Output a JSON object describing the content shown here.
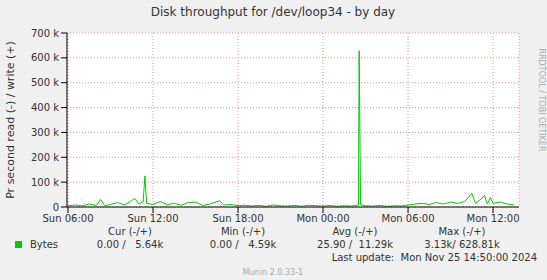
{
  "chart_data": {
    "type": "line",
    "title": "Disk throughput for /dev/loop34 - by day",
    "y_label": "Pr second read (-) / write (+)",
    "x": [
      6.0,
      6.5,
      7.0,
      7.5,
      8.0,
      8.3,
      8.6,
      9.0,
      9.5,
      10.0,
      10.4,
      10.7,
      11.0,
      11.3,
      11.43,
      11.55,
      12.0,
      12.5,
      13.0,
      13.5,
      14.0,
      14.5,
      15.0,
      15.5,
      16.0,
      16.7,
      17.0,
      17.5,
      18.0,
      18.5,
      19.0,
      19.5,
      20.0,
      20.5,
      21.0,
      21.5,
      22.0,
      22.5,
      23.0,
      23.5,
      24.0,
      24.5,
      25.0,
      25.5,
      26.0,
      26.5,
      26.55,
      26.65,
      27.0,
      27.5,
      28.0,
      28.5,
      29.0,
      29.5,
      30.0,
      30.5,
      31.0,
      31.5,
      32.0,
      32.5,
      33.0,
      33.5,
      34.0,
      34.5,
      34.75,
      35.0,
      35.4,
      35.6,
      35.8,
      36.0,
      36.5,
      37.0,
      37.5
    ],
    "series": [
      {
        "name": "Bytes",
        "color": "#00cc00",
        "values": [
          5000,
          8000,
          4000,
          12000,
          6000,
          30000,
          5000,
          10000,
          18000,
          8000,
          22000,
          35000,
          12000,
          20000,
          125000,
          15000,
          10000,
          22000,
          9000,
          15000,
          7000,
          18000,
          20000,
          6000,
          12000,
          25000,
          8000,
          10000,
          5000,
          7000,
          4000,
          6000,
          3000,
          8000,
          5000,
          4000,
          6000,
          3000,
          7000,
          5000,
          4000,
          6000,
          3000,
          5000,
          4000,
          8000,
          628810,
          9000,
          5000,
          4000,
          6000,
          3000,
          5000,
          4000,
          8000,
          12000,
          15000,
          10000,
          18000,
          12000,
          20000,
          14000,
          22000,
          55000,
          15000,
          25000,
          45000,
          12000,
          38000,
          15000,
          20000,
          12000,
          8000
        ]
      }
    ],
    "xlim": [
      5.93,
      37.83
    ],
    "xticks": [
      {
        "value": 6,
        "label": "Sun 06:00"
      },
      {
        "value": 12,
        "label": "Sun 12:00"
      },
      {
        "value": 18,
        "label": "Sun 18:00"
      },
      {
        "value": 24,
        "label": "Mon 00:00"
      },
      {
        "value": 30,
        "label": "Mon 06:00"
      },
      {
        "value": 36,
        "label": "Mon 12:00"
      }
    ],
    "ylim": [
      0,
      700000
    ],
    "yticks": [
      0,
      {
        "value": 100000,
        "label": "100 k"
      },
      {
        "value": 200000,
        "label": "200 k"
      },
      {
        "value": 300000,
        "label": "300 k"
      },
      {
        "value": 400000,
        "label": "400 k"
      },
      {
        "value": 500000,
        "label": "500 k"
      },
      {
        "value": 600000,
        "label": "600 k"
      },
      {
        "value": 700000,
        "label": "700 k"
      }
    ],
    "grid": true,
    "summary": {
      "headers": [
        "Cur (-/+)",
        "Min (-/+)",
        "Avg (-/+)",
        "Max (-/+)"
      ],
      "rows": [
        {
          "name": "Bytes",
          "values": [
            "0.00 /   5.64k",
            "0.00 /   4.59k",
            "25.90 /  11.29k",
            "3.13k/ 628.81k"
          ]
        }
      ]
    },
    "last_update": "Last update:  Mon Nov 25 14:50:00 2024",
    "footer": "Munin 2.0.33-1",
    "watermark": "RRDTOOL / TOBI OETIKER"
  }
}
